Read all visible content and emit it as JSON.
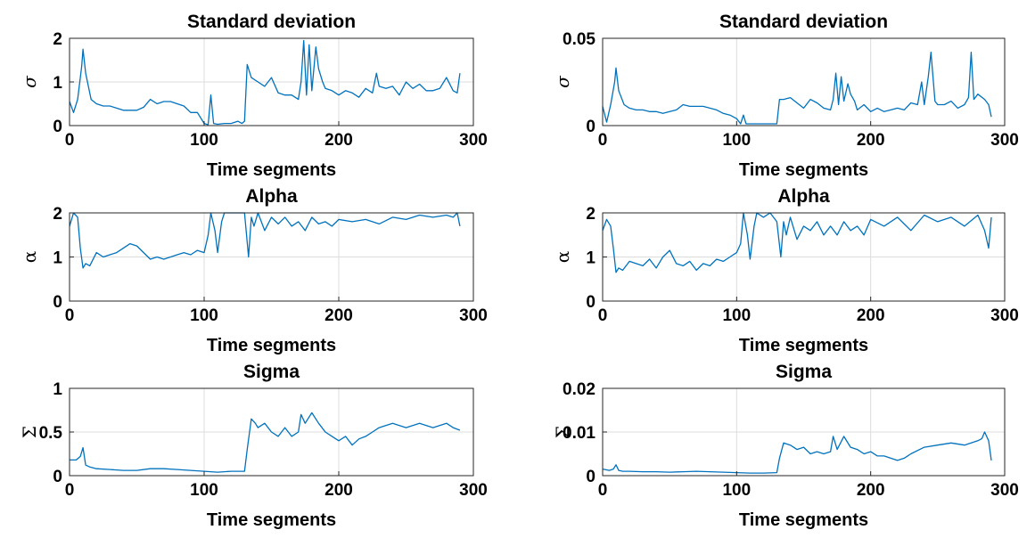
{
  "chart_data": [
    {
      "type": "line",
      "title": "Standard deviation",
      "xlabel": "Time segments",
      "ylabel": "σ",
      "xlim": [
        0,
        300
      ],
      "ylim": [
        0,
        2
      ],
      "xticks": [
        0,
        100,
        200,
        300
      ],
      "yticks": [
        0,
        1,
        2
      ],
      "yticklabels": [
        "0",
        "1",
        "2"
      ],
      "grid": true,
      "series": [
        {
          "x": [
            0,
            3,
            6,
            9,
            10,
            12,
            16,
            20,
            25,
            30,
            35,
            40,
            45,
            50,
            55,
            60,
            65,
            70,
            75,
            80,
            85,
            90,
            95,
            100,
            103,
            105,
            107,
            110,
            115,
            120,
            125,
            128,
            130,
            132,
            135,
            140,
            145,
            150,
            155,
            160,
            165,
            170,
            172,
            174,
            176,
            178,
            180,
            183,
            185,
            188,
            190,
            195,
            200,
            205,
            210,
            215,
            220,
            225,
            228,
            230,
            235,
            240,
            245,
            250,
            255,
            260,
            265,
            270,
            275,
            280,
            285,
            288,
            290
          ],
          "y": [
            0.55,
            0.3,
            0.6,
            1.35,
            1.75,
            1.2,
            0.6,
            0.5,
            0.45,
            0.45,
            0.4,
            0.35,
            0.35,
            0.35,
            0.42,
            0.6,
            0.5,
            0.55,
            0.55,
            0.5,
            0.45,
            0.3,
            0.3,
            0.05,
            0.02,
            0.7,
            0.05,
            0.03,
            0.05,
            0.05,
            0.1,
            0.05,
            0.1,
            1.4,
            1.1,
            1.0,
            0.9,
            1.1,
            0.75,
            0.7,
            0.7,
            0.6,
            1.0,
            1.95,
            0.7,
            1.85,
            0.8,
            1.8,
            1.3,
            1.0,
            0.85,
            0.8,
            0.7,
            0.8,
            0.75,
            0.65,
            0.85,
            0.75,
            1.2,
            0.9,
            0.85,
            0.9,
            0.7,
            1.0,
            0.85,
            0.95,
            0.8,
            0.8,
            0.85,
            1.1,
            0.8,
            0.75,
            1.2
          ]
        }
      ]
    },
    {
      "type": "line",
      "title": "Standard deviation",
      "xlabel": "Time segments",
      "ylabel": "σ",
      "xlim": [
        0,
        300
      ],
      "ylim": [
        0,
        0.05
      ],
      "xticks": [
        0,
        100,
        200,
        300
      ],
      "yticks": [
        0,
        0.05
      ],
      "yticklabels": [
        "0",
        "0.05"
      ],
      "grid": true,
      "series": [
        {
          "x": [
            0,
            3,
            6,
            9,
            10,
            12,
            16,
            20,
            25,
            30,
            35,
            40,
            45,
            50,
            55,
            60,
            65,
            70,
            75,
            80,
            85,
            90,
            95,
            100,
            103,
            105,
            107,
            110,
            115,
            120,
            125,
            128,
            130,
            132,
            135,
            140,
            145,
            150,
            155,
            160,
            165,
            170,
            172,
            174,
            176,
            178,
            180,
            183,
            185,
            188,
            190,
            195,
            200,
            205,
            210,
            215,
            220,
            225,
            230,
            235,
            238,
            240,
            243,
            245,
            248,
            250,
            255,
            260,
            265,
            270,
            273,
            275,
            277,
            280,
            285,
            288,
            290
          ],
          "y": [
            0.011,
            0.002,
            0.012,
            0.025,
            0.033,
            0.02,
            0.012,
            0.01,
            0.009,
            0.009,
            0.008,
            0.008,
            0.007,
            0.008,
            0.009,
            0.012,
            0.011,
            0.011,
            0.011,
            0.01,
            0.009,
            0.007,
            0.006,
            0.004,
            0.001,
            0.006,
            0.001,
            0.001,
            0.001,
            0.001,
            0.001,
            0.001,
            0.001,
            0.015,
            0.015,
            0.016,
            0.013,
            0.01,
            0.015,
            0.013,
            0.01,
            0.009,
            0.015,
            0.03,
            0.012,
            0.028,
            0.014,
            0.024,
            0.018,
            0.014,
            0.009,
            0.012,
            0.008,
            0.01,
            0.008,
            0.009,
            0.01,
            0.009,
            0.013,
            0.012,
            0.025,
            0.012,
            0.028,
            0.042,
            0.014,
            0.012,
            0.012,
            0.014,
            0.01,
            0.012,
            0.016,
            0.042,
            0.015,
            0.018,
            0.015,
            0.012,
            0.005
          ]
        }
      ]
    },
    {
      "type": "line",
      "title": "Alpha",
      "xlabel": "Time segments",
      "ylabel": "α",
      "xlim": [
        0,
        300
      ],
      "ylim": [
        0,
        2
      ],
      "xticks": [
        0,
        100,
        200,
        300
      ],
      "yticks": [
        0,
        1,
        2
      ],
      "yticklabels": [
        "0",
        "1",
        "2"
      ],
      "grid": true,
      "series": [
        {
          "x": [
            0,
            3,
            6,
            8,
            10,
            12,
            15,
            20,
            25,
            30,
            35,
            40,
            45,
            50,
            55,
            60,
            65,
            70,
            75,
            80,
            85,
            90,
            95,
            100,
            103,
            105,
            108,
            110,
            113,
            115,
            120,
            125,
            130,
            133,
            135,
            137,
            140,
            145,
            150,
            155,
            160,
            165,
            170,
            175,
            180,
            185,
            190,
            195,
            200,
            210,
            220,
            230,
            240,
            250,
            260,
            270,
            280,
            285,
            288,
            290
          ],
          "y": [
            1.7,
            2.0,
            1.9,
            1.2,
            0.75,
            0.85,
            0.8,
            1.1,
            1.0,
            1.05,
            1.1,
            1.2,
            1.3,
            1.25,
            1.1,
            0.95,
            1.0,
            0.95,
            1.0,
            1.05,
            1.1,
            1.05,
            1.15,
            1.1,
            1.5,
            2.0,
            1.6,
            1.1,
            1.8,
            2.0,
            2.0,
            2.0,
            2.0,
            1.0,
            1.9,
            1.7,
            2.0,
            1.6,
            1.9,
            1.75,
            1.9,
            1.7,
            1.8,
            1.6,
            1.9,
            1.75,
            1.8,
            1.7,
            1.85,
            1.8,
            1.85,
            1.75,
            1.9,
            1.85,
            1.95,
            1.9,
            1.95,
            1.9,
            2.0,
            1.7
          ]
        }
      ]
    },
    {
      "type": "line",
      "title": "Alpha",
      "xlabel": "Time segments",
      "ylabel": "α",
      "xlim": [
        0,
        300
      ],
      "ylim": [
        0,
        2
      ],
      "xticks": [
        0,
        100,
        200,
        300
      ],
      "yticks": [
        0,
        1,
        2
      ],
      "yticklabels": [
        "0",
        "1",
        "2"
      ],
      "grid": true,
      "series": [
        {
          "x": [
            0,
            3,
            6,
            8,
            10,
            12,
            15,
            20,
            25,
            30,
            35,
            40,
            45,
            50,
            55,
            60,
            65,
            70,
            75,
            80,
            85,
            90,
            95,
            100,
            103,
            105,
            108,
            110,
            113,
            115,
            120,
            125,
            130,
            133,
            135,
            137,
            140,
            145,
            150,
            155,
            160,
            165,
            170,
            175,
            180,
            185,
            190,
            195,
            200,
            210,
            220,
            230,
            240,
            250,
            260,
            270,
            280,
            285,
            288,
            290
          ],
          "y": [
            1.6,
            1.85,
            1.7,
            1.2,
            0.65,
            0.75,
            0.7,
            0.9,
            0.85,
            0.8,
            0.95,
            0.75,
            1.0,
            1.15,
            0.85,
            0.8,
            0.9,
            0.7,
            0.85,
            0.8,
            0.95,
            0.9,
            1.0,
            1.1,
            1.3,
            2.0,
            1.5,
            0.95,
            1.7,
            2.0,
            1.9,
            2.0,
            1.8,
            1.0,
            1.8,
            1.5,
            1.9,
            1.4,
            1.7,
            1.6,
            1.8,
            1.5,
            1.7,
            1.5,
            1.8,
            1.6,
            1.7,
            1.5,
            1.85,
            1.7,
            1.9,
            1.6,
            1.95,
            1.8,
            1.9,
            1.7,
            1.95,
            1.6,
            1.2,
            1.9
          ]
        }
      ]
    },
    {
      "type": "line",
      "title": "Sigma",
      "xlabel": "Time segments",
      "ylabel": "Σ",
      "xlim": [
        0,
        300
      ],
      "ylim": [
        0,
        1
      ],
      "xticks": [
        0,
        100,
        200,
        300
      ],
      "yticks": [
        0,
        0.5,
        1
      ],
      "yticklabels": [
        "0",
        "0.5",
        "1"
      ],
      "grid": true,
      "series": [
        {
          "x": [
            0,
            5,
            8,
            10,
            12,
            15,
            20,
            30,
            40,
            50,
            60,
            70,
            80,
            90,
            100,
            110,
            120,
            130,
            132,
            135,
            138,
            140,
            145,
            150,
            155,
            160,
            165,
            170,
            172,
            175,
            180,
            185,
            190,
            195,
            200,
            205,
            210,
            215,
            220,
            225,
            230,
            240,
            250,
            260,
            270,
            280,
            285,
            290
          ],
          "y": [
            0.18,
            0.18,
            0.22,
            0.32,
            0.12,
            0.1,
            0.08,
            0.07,
            0.06,
            0.06,
            0.08,
            0.08,
            0.07,
            0.06,
            0.05,
            0.04,
            0.05,
            0.05,
            0.3,
            0.65,
            0.6,
            0.55,
            0.6,
            0.5,
            0.45,
            0.55,
            0.45,
            0.5,
            0.7,
            0.6,
            0.72,
            0.6,
            0.5,
            0.45,
            0.4,
            0.45,
            0.35,
            0.42,
            0.45,
            0.5,
            0.55,
            0.6,
            0.55,
            0.6,
            0.55,
            0.6,
            0.55,
            0.52
          ]
        }
      ]
    },
    {
      "type": "line",
      "title": "Sigma",
      "xlabel": "Time segments",
      "ylabel": "Σ",
      "xlim": [
        0,
        300
      ],
      "ylim": [
        0,
        0.02
      ],
      "xticks": [
        0,
        100,
        200,
        300
      ],
      "yticks": [
        0,
        0.01,
        0.02
      ],
      "yticklabels": [
        "0",
        "0.01",
        "0.02"
      ],
      "grid": true,
      "series": [
        {
          "x": [
            0,
            5,
            8,
            10,
            12,
            15,
            20,
            30,
            40,
            50,
            60,
            70,
            80,
            90,
            100,
            110,
            120,
            130,
            132,
            135,
            140,
            145,
            150,
            155,
            160,
            165,
            170,
            172,
            175,
            180,
            185,
            190,
            195,
            200,
            205,
            210,
            215,
            220,
            225,
            230,
            240,
            250,
            260,
            270,
            280,
            283,
            285,
            288,
            290
          ],
          "y": [
            0.0015,
            0.0012,
            0.0015,
            0.0025,
            0.0012,
            0.001,
            0.001,
            0.0009,
            0.0009,
            0.0008,
            0.0009,
            0.001,
            0.0009,
            0.0008,
            0.0007,
            0.0006,
            0.0006,
            0.0007,
            0.004,
            0.0075,
            0.007,
            0.006,
            0.0065,
            0.005,
            0.0055,
            0.005,
            0.0055,
            0.009,
            0.006,
            0.009,
            0.0065,
            0.006,
            0.005,
            0.0055,
            0.0045,
            0.0045,
            0.004,
            0.0035,
            0.004,
            0.005,
            0.0065,
            0.007,
            0.0075,
            0.007,
            0.008,
            0.0085,
            0.01,
            0.008,
            0.0035
          ]
        }
      ]
    }
  ]
}
